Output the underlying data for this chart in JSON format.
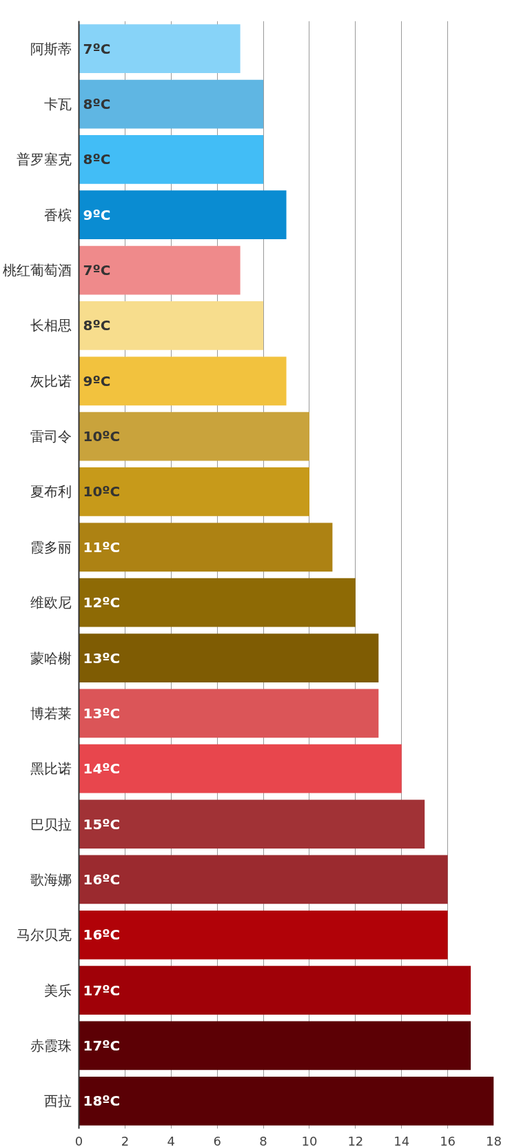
{
  "chart_data": {
    "type": "bar",
    "orientation": "horizontal",
    "categories": [
      "阿斯蒂",
      "卡瓦",
      "普罗塞克",
      "香槟",
      "桃红葡萄酒",
      "长相思",
      "灰比诺",
      "雷司令",
      "夏布利",
      "霞多丽",
      "维欧尼",
      "蒙哈榭",
      "博若莱",
      "黑比诺",
      "巴贝拉",
      "歌海娜",
      "马尔贝克",
      "美乐",
      "赤霞珠",
      "西拉"
    ],
    "values": [
      7,
      8,
      8,
      9,
      7,
      8,
      9,
      10,
      10,
      11,
      12,
      13,
      13,
      14,
      15,
      16,
      16,
      17,
      17,
      18
    ],
    "colors": [
      "#87d3f8",
      "#5fb6e3",
      "#42bdf6",
      "#0a8cd2",
      "#ef8a8b",
      "#f7dd8d",
      "#f2c23e",
      "#c9a33c",
      "#c79a1a",
      "#ad8213",
      "#8e6a05",
      "#7f5c03",
      "#db5558",
      "#e8464d",
      "#a13236",
      "#9b2a2f",
      "#b10208",
      "#a00108",
      "#5c0005",
      "#5a0005"
    ],
    "value_labels": [
      "7ºC",
      "8ºC",
      "8ºC",
      "9ºC",
      "7ºC",
      "8ºC",
      "9ºC",
      "10ºC",
      "10ºC",
      "11ºC",
      "12ºC",
      "13ºC",
      "13ºC",
      "14ºC",
      "15ºC",
      "16ºC",
      "16ºC",
      "17ºC",
      "17ºC",
      "18ºC"
    ],
    "xlim": [
      0,
      18
    ],
    "xticks": [
      0,
      2,
      4,
      6,
      8,
      10,
      12,
      14,
      16,
      18
    ],
    "grid": "x"
  }
}
